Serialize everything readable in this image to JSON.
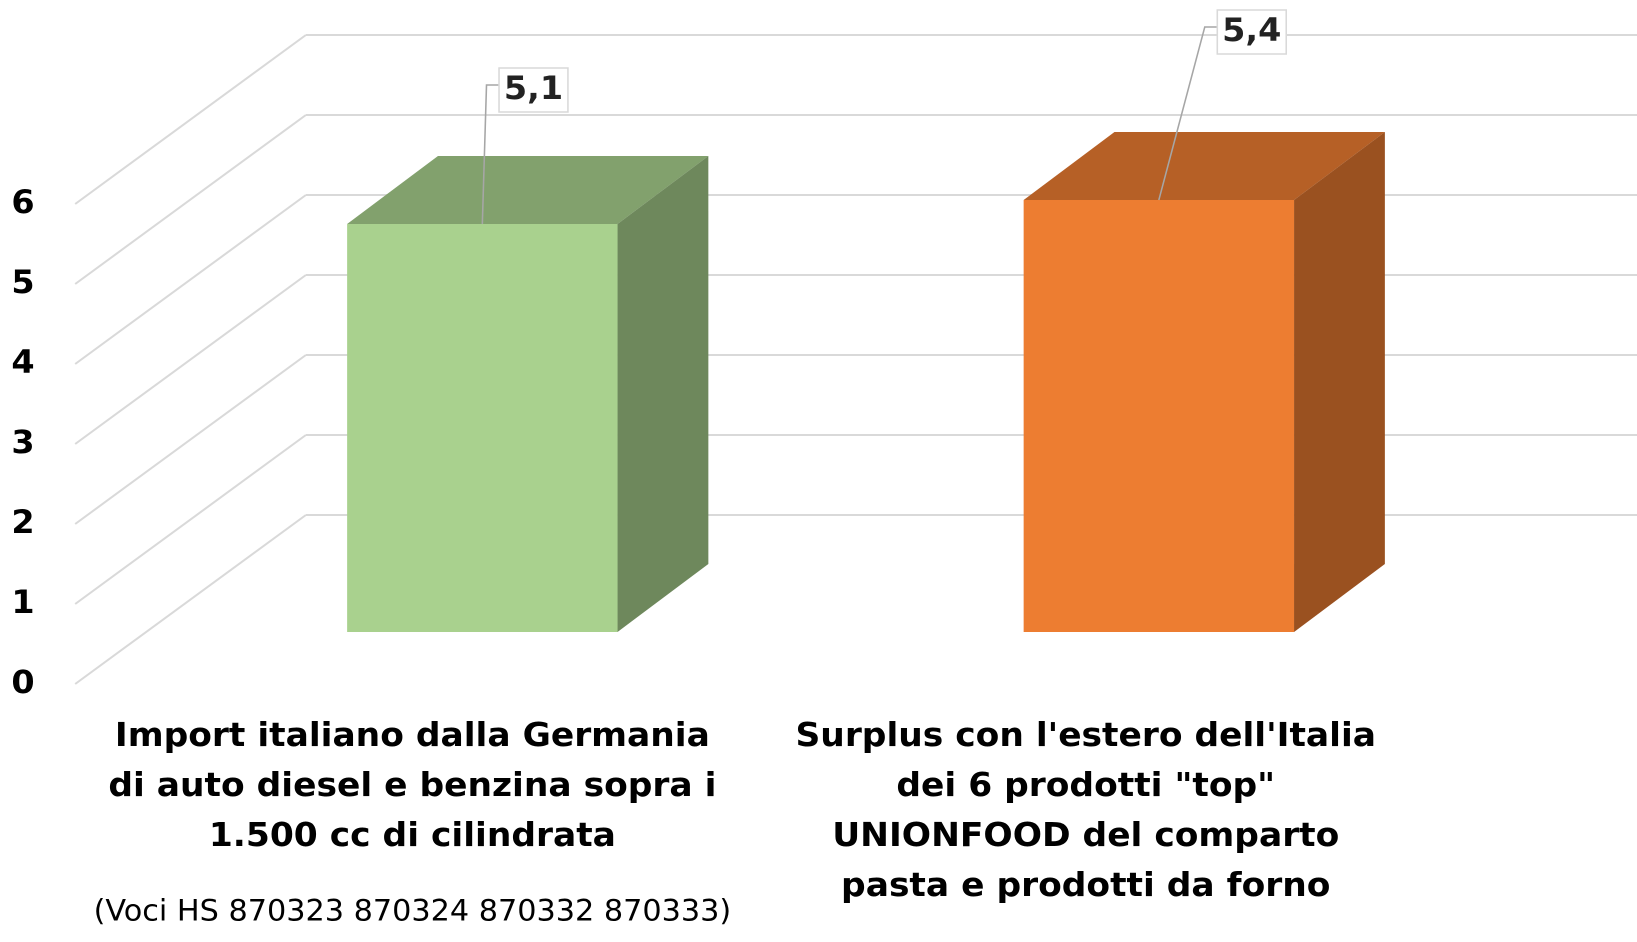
{
  "chart_data": {
    "type": "bar3d",
    "categories": [
      "Import italiano dalla Germania di auto diesel e benzina sopra i 1.500 cc di cilindrata",
      "Surplus con l'estero dell'Italia dei 6 prodotti \"top\" UNIONFOOD del comparto pasta e prodotti da forno"
    ],
    "annotations": [
      "(Voci HS 870323 870324 870332 870333)"
    ],
    "values": [
      5.1,
      5.4
    ],
    "value_labels": [
      "5,1",
      "5,4"
    ],
    "colors": [
      "#a9d18e",
      "#ed7d31"
    ],
    "ylim": [
      0,
      6
    ],
    "yticks": [
      0,
      1,
      2,
      3,
      4,
      5,
      6
    ],
    "grid": true
  }
}
